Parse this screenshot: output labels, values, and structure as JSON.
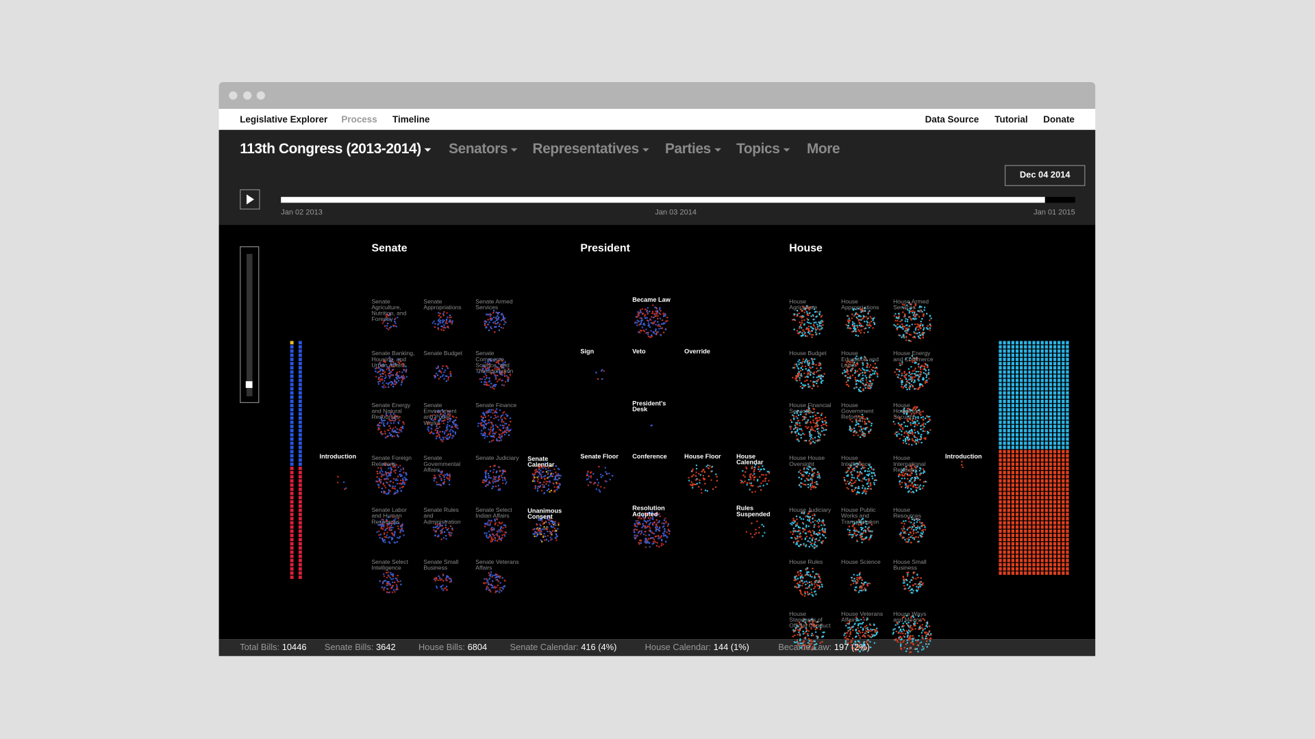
{
  "nav": {
    "brand": "Legislative Explorer",
    "links": [
      "Process",
      "Timeline"
    ],
    "right": [
      "Data Source",
      "Tutorial",
      "Donate"
    ]
  },
  "toolbar": {
    "congress": "113th Congress (2013-2014)",
    "menus": [
      "Senators",
      "Representatives",
      "Parties",
      "Topics"
    ],
    "more": "More"
  },
  "timeline": {
    "current": "Dec 04 2014",
    "labels": [
      "Jan 02 2013",
      "Jan 03 2014",
      "Jan 01 2015"
    ]
  },
  "senate": {
    "title": "Senate",
    "introduction": "Introduction",
    "committees": [
      [
        "Senate Agriculture, Nutrition, and Forestry",
        "Senate Appropriations",
        "Senate Armed Services"
      ],
      [
        "Senate Banking, Housing, and Urban Affairs",
        "Senate Budget",
        "Senate Commerce, Science, and Transportation"
      ],
      [
        "Senate Energy and Natural Resources",
        "Senate Environment and Public Works",
        "Senate Finance"
      ],
      [
        "Senate Foreign Relations",
        "Senate Governmental Affairs",
        "Senate Judiciary",
        "Senate Calendar"
      ],
      [
        "Senate Labor and Human Resources",
        "Senate Rules and Administration",
        "Senate Select Indian Affairs",
        "Unanimous Consent"
      ],
      [
        "Senate Select Intelligence",
        "Senate Small Business",
        "Senate Veterans Affairs"
      ]
    ]
  },
  "president": {
    "title": "President",
    "stages": [
      "Became Law",
      "Sign",
      "Veto",
      "Override",
      "President's Desk",
      "Senate Floor",
      "Conference",
      "House Floor",
      "House Calendar",
      "Resolution Adopted",
      "Rules Suspended"
    ]
  },
  "house": {
    "title": "House",
    "introduction": "Introduction",
    "committees": [
      [
        "House Agriculture",
        "House Appropriations",
        "House Armed Services"
      ],
      [
        "House Budget",
        "House Education and Labor",
        "House Energy and Commerce"
      ],
      [
        "House Financial Services",
        "House Government Reform",
        "House Homeland Security"
      ],
      [
        "House House Oversight",
        "House Intelligence",
        "House International Relations"
      ],
      [
        "House Judiciary",
        "House Public Works and Transportation",
        "House Resources"
      ],
      [
        "House Rules",
        "House Science",
        "House Small Business"
      ],
      [
        "House Standards of Official Conduct",
        "House Veterans Affairs",
        "House Ways and Means"
      ]
    ]
  },
  "stats": [
    {
      "label": "Total Bills:",
      "value": "10446"
    },
    {
      "label": "Senate Bills:",
      "value": "3642"
    },
    {
      "label": "House Bills:",
      "value": "6804"
    },
    {
      "label": "Senate Calendar:",
      "value": "416 (4%)"
    },
    {
      "label": "House Calendar:",
      "value": "144 (1%)"
    },
    {
      "label": "Became Law:",
      "value": "197 (2%)"
    }
  ]
}
